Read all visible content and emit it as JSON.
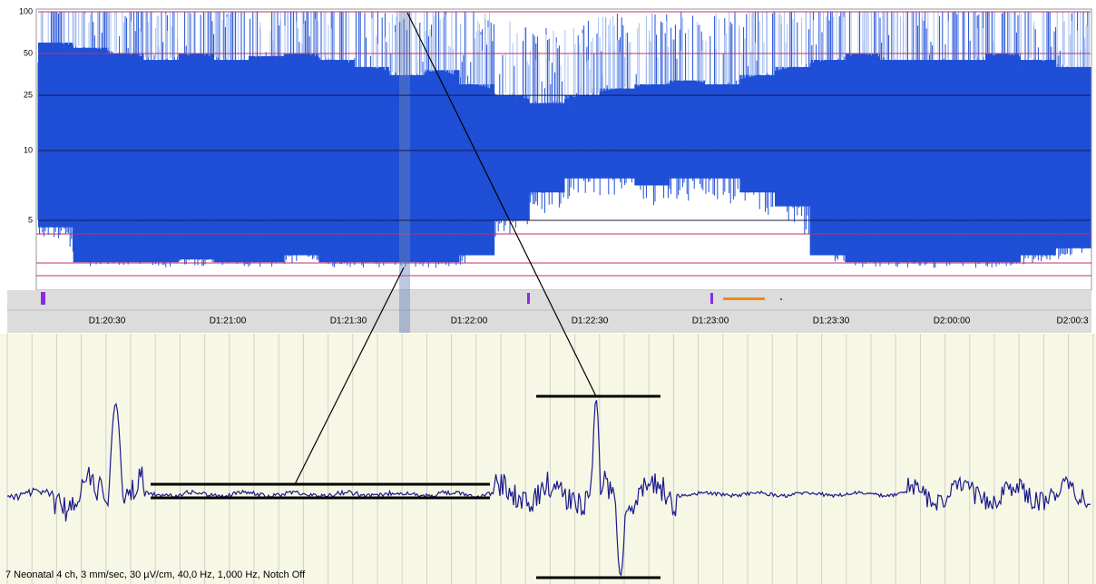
{
  "chart_data": {
    "type": "aeeg",
    "scale": "linear-log",
    "scale_break": 10,
    "ylim": [
      0,
      100
    ],
    "yticks": [
      5,
      10,
      25,
      50,
      100
    ],
    "x_labels": [
      "D1:20:30",
      "D1:21:00",
      "D1:21:30",
      "D1:22:00",
      "D1:22:30",
      "D1:23:00",
      "D1:23:30",
      "D2:00:00",
      "D2:00:3"
    ],
    "margin_upper": [
      60,
      55,
      50,
      45,
      50,
      45,
      48,
      50,
      45,
      40,
      35,
      38,
      30,
      25,
      22,
      25,
      28,
      30,
      32,
      30,
      35,
      40,
      45,
      50,
      45,
      45,
      45,
      50,
      45,
      40
    ],
    "margin_lower": [
      4.5,
      2,
      2,
      2,
      2.2,
      2,
      2,
      2.5,
      2,
      2,
      2,
      2,
      2.5,
      5,
      7,
      8,
      8,
      7.5,
      8,
      8,
      7,
      6,
      2.5,
      2,
      2,
      2,
      2,
      2,
      2.5,
      3
    ],
    "color": "#1f4fd6"
  },
  "footer": {
    "text": "7 Neonatal 4 ch, 3 mm/sec, 30 µV/cm, 40,0 Hz, 1,000 Hz, Notch Off"
  }
}
